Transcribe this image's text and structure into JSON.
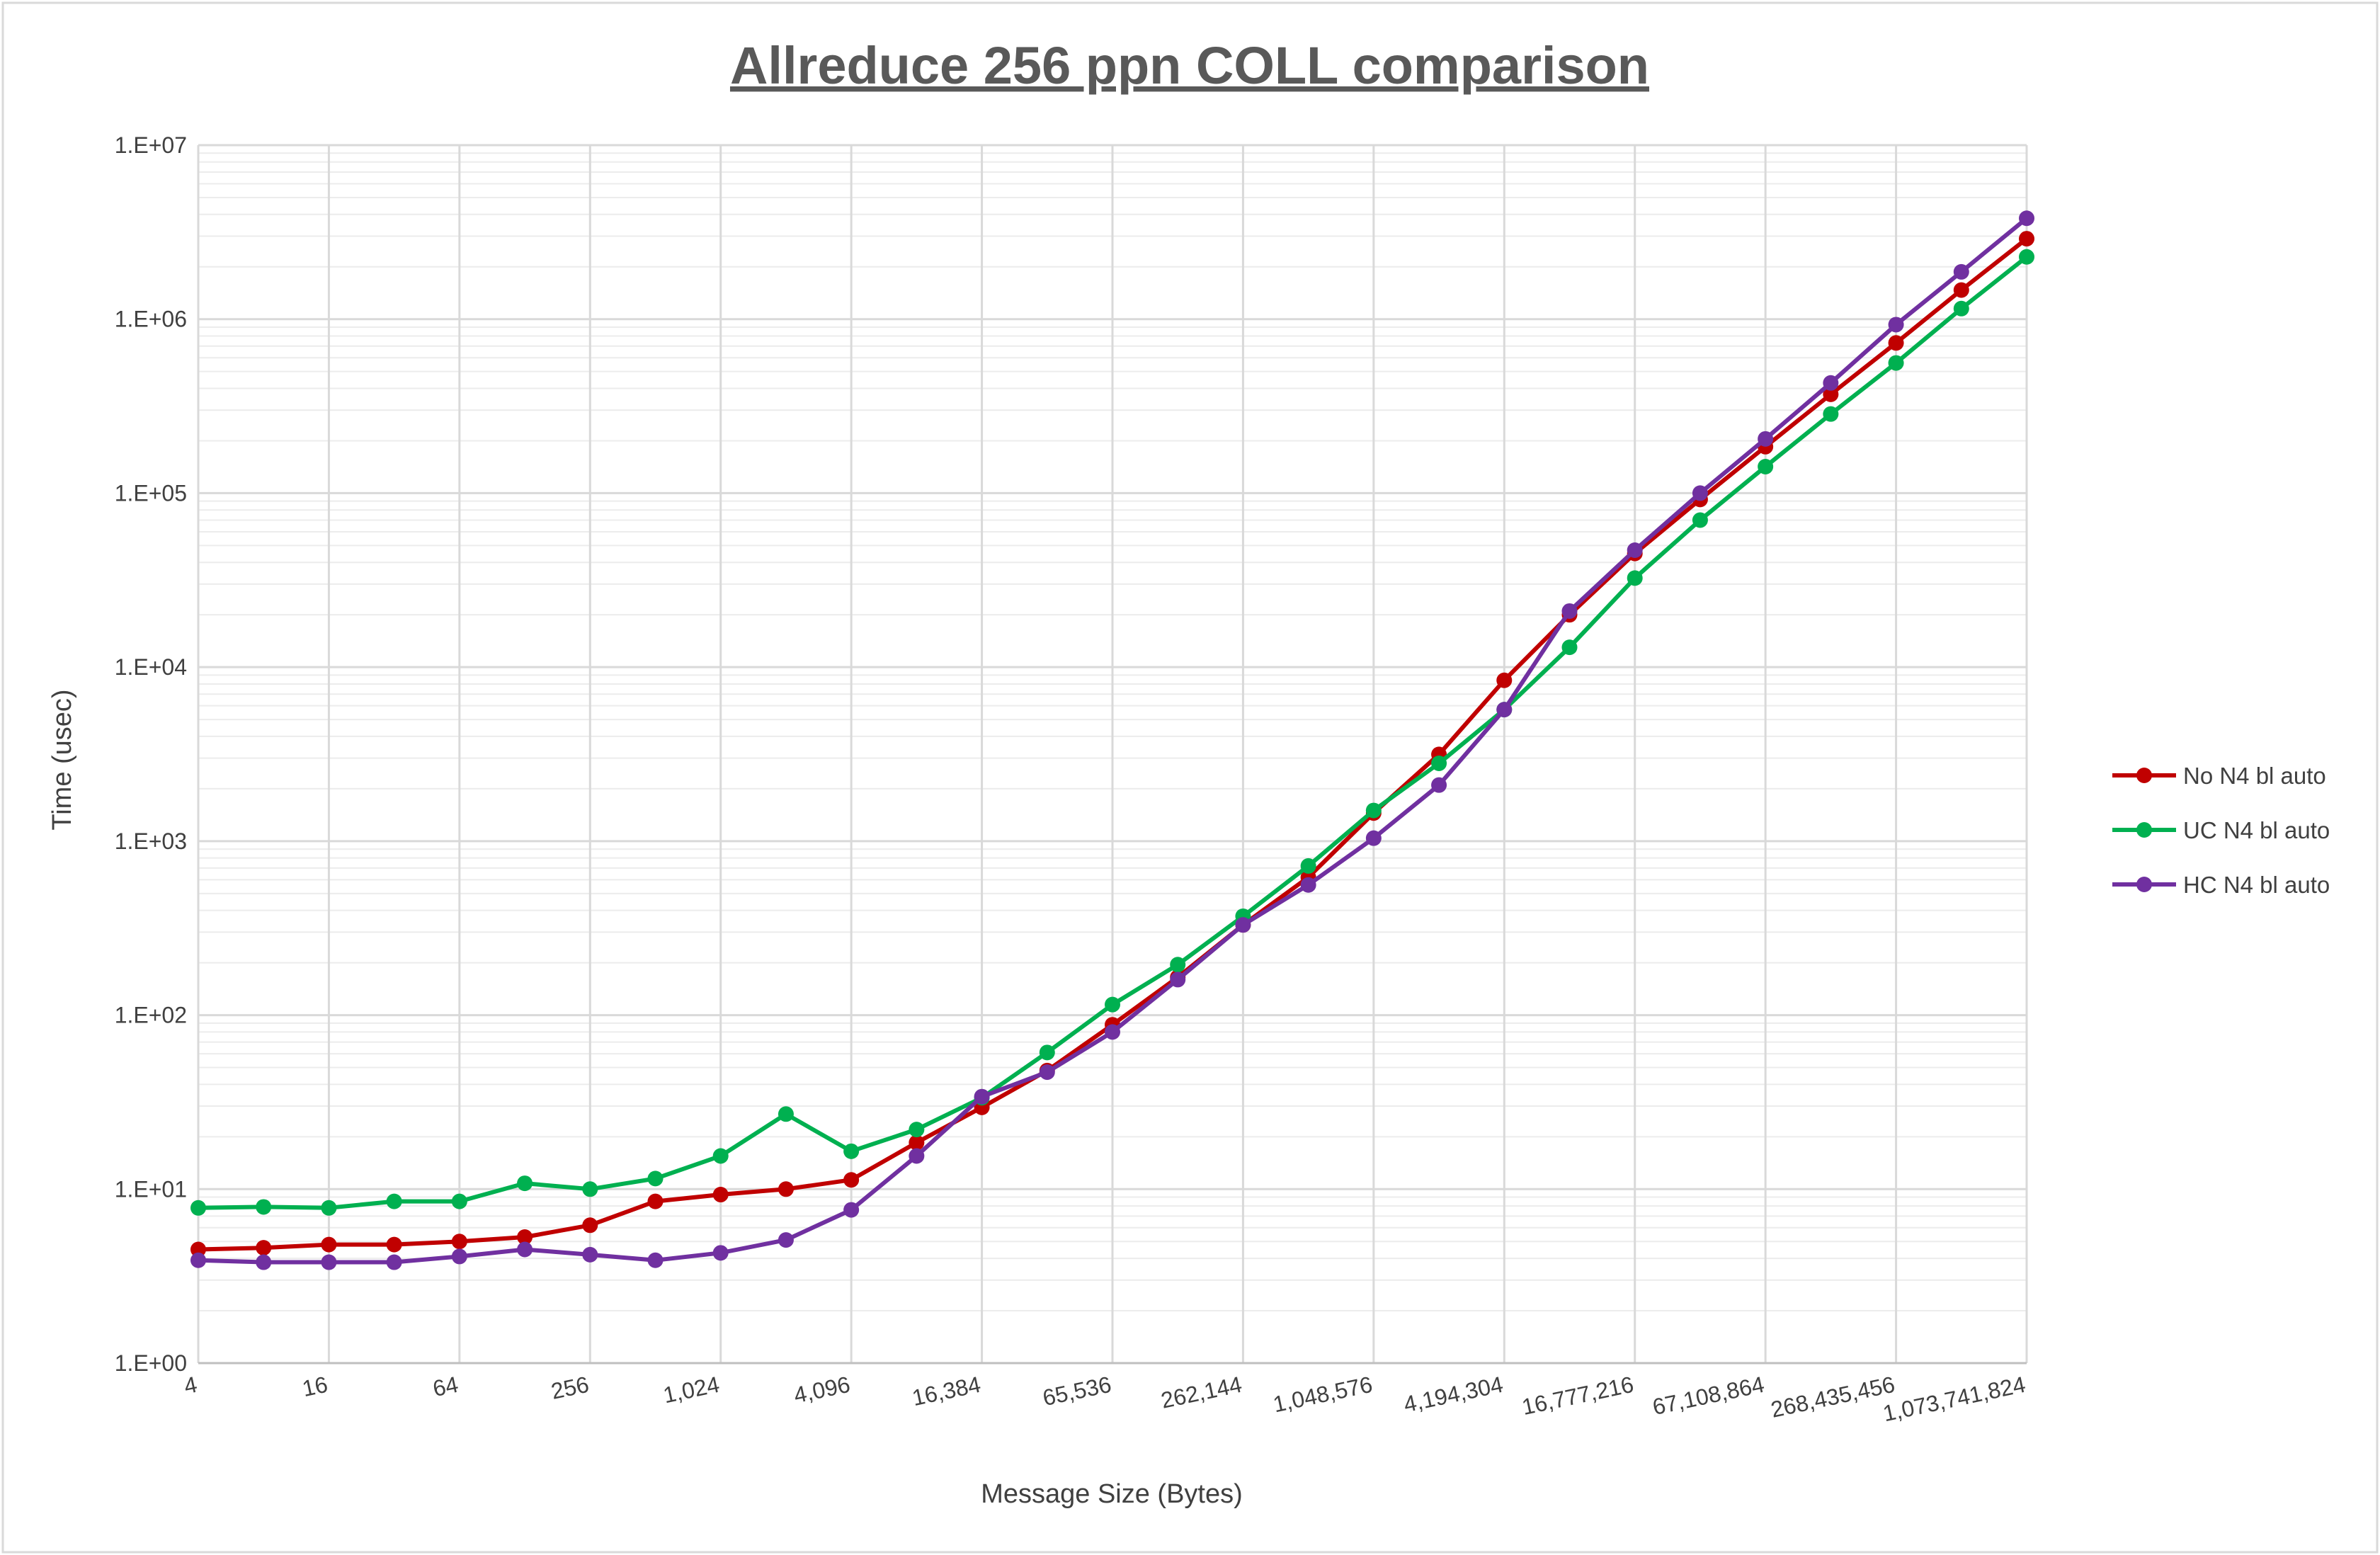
{
  "chart_data": {
    "type": "line",
    "title": "Allreduce 256 ppn COLL comparison",
    "xlabel": "Message Size (Bytes)",
    "ylabel": "Time (usec)",
    "y_scale": "log",
    "ylim": [
      1,
      10000000
    ],
    "y_tick_labels": [
      "1.E+00",
      "1.E+01",
      "1.E+02",
      "1.E+03",
      "1.E+04",
      "1.E+05",
      "1.E+06",
      "1.E+07"
    ],
    "x_tick_labels": [
      "4",
      "16",
      "64",
      "256",
      "1,024",
      "4,096",
      "16,384",
      "65,536",
      "262,144",
      "1,048,576",
      "4,194,304",
      "16,777,216",
      "67,108,864",
      "268,435,456",
      "1,073,741,824"
    ],
    "x": [
      "4",
      "8",
      "16",
      "32",
      "64",
      "128",
      "256",
      "512",
      "1,024",
      "2,048",
      "4,096",
      "8,192",
      "16,384",
      "32,768",
      "65,536",
      "131,072",
      "262,144",
      "524,288",
      "1,048,576",
      "2,097,152",
      "4,194,304",
      "8,388,608",
      "16,777,216",
      "33,554,432",
      "67,108,864",
      "134,217,728",
      "268,435,456",
      "536,870,912",
      "1,073,741,824"
    ],
    "grid": true,
    "legend_position": "right",
    "series": [
      {
        "name": "No N4 bl auto",
        "color": "#c00000",
        "values": [
          4.5,
          4.6,
          4.8,
          4.8,
          5.0,
          5.3,
          6.2,
          8.5,
          9.3,
          10.0,
          11.3,
          18.5,
          29.5,
          48.0,
          88.0,
          165.0,
          330.0,
          620.0,
          1450.0,
          3150.0,
          8400.0,
          20000.0,
          45000.0,
          92000.0,
          185000.0,
          370000.0,
          730000.0,
          1470000.0,
          2900000.0
        ]
      },
      {
        "name": "UC N4 bl auto",
        "color": "#00b050",
        "values": [
          7.8,
          7.9,
          7.8,
          8.5,
          8.5,
          10.8,
          10.0,
          11.5,
          15.5,
          27.0,
          16.5,
          22.0,
          33.5,
          61.0,
          115.0,
          195.0,
          370.0,
          720.0,
          1500.0,
          2800.0,
          5700.0,
          13000.0,
          32500.0,
          70000.0,
          142000.0,
          285000.0,
          560000.0,
          1150000.0,
          2280000.0
        ]
      },
      {
        "name": "HC N4 bl auto",
        "color": "#7030a0",
        "values": [
          3.9,
          3.8,
          3.8,
          3.8,
          4.1,
          4.5,
          4.2,
          3.9,
          4.3,
          5.1,
          7.6,
          15.5,
          34.0,
          47.0,
          80.0,
          160.0,
          330.0,
          560.0,
          1040.0,
          2100.0,
          5700.0,
          21000.0,
          47000.0,
          100000.0,
          205000.0,
          430000.0,
          930000.0,
          1870000.0,
          3800000.0
        ]
      }
    ]
  }
}
